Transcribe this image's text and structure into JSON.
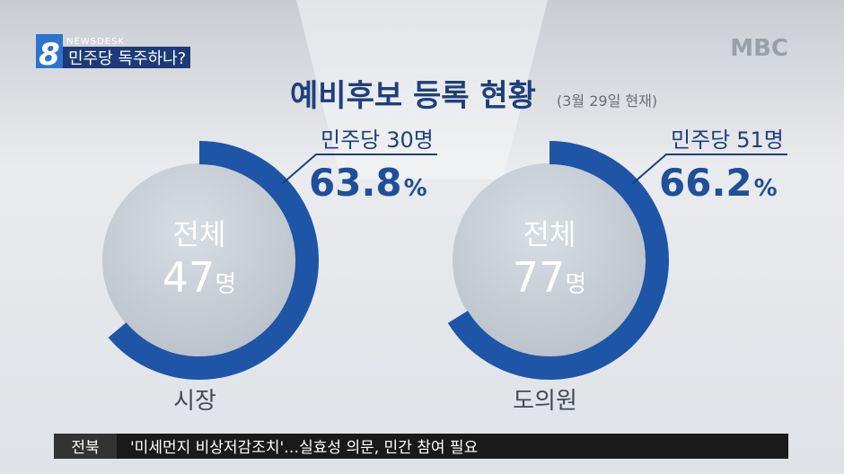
{
  "header": {
    "logo_number": "8",
    "program": "NEWSDESK",
    "headline": "민주당 독주하나?",
    "broadcaster": "MBC"
  },
  "title": "예비후보 등록 현황",
  "subtitle": "(3월 29일 현재)",
  "chart_data": [
    {
      "type": "donut",
      "category": "시장",
      "center_label": "전체",
      "total": 47,
      "total_unit": "명",
      "series": [
        {
          "name": "민주당",
          "color": "#1f55a6",
          "count": 30,
          "count_unit": "명",
          "value": 63.8,
          "value_unit": "%"
        }
      ]
    },
    {
      "type": "donut",
      "category": "도의원",
      "center_label": "전체",
      "total": 77,
      "total_unit": "명",
      "series": [
        {
          "name": "민주당",
          "color": "#1f55a6",
          "count": 51,
          "count_unit": "명",
          "value": 66.2,
          "value_unit": "%"
        }
      ]
    }
  ],
  "ticker": {
    "region": "전북",
    "text": "'미세먼지 비상저감조치'…실효성 의문, 민간 참여 필요"
  }
}
